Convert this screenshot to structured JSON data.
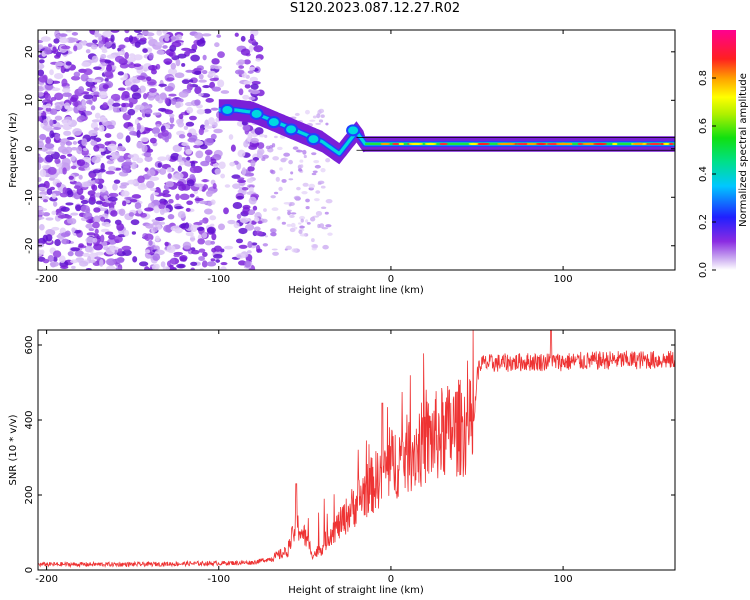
{
  "title": "S120.2023.087.12.27.R02",
  "chart_data": [
    {
      "type": "heatmap",
      "xlabel": "Height of straight line (km)",
      "ylabel": "Frequency (Hz)",
      "xlim": [
        -205,
        165
      ],
      "ylim": [
        -25,
        24.5
      ],
      "xticks": [
        -200,
        -100,
        0,
        100
      ],
      "yticks": [
        -20,
        -10,
        0,
        10,
        20
      ],
      "colorbar": {
        "label": "Normalized spectral amplitude",
        "range": [
          0,
          1
        ],
        "ticks": [
          0.0,
          0.2,
          0.4,
          0.6,
          0.8
        ]
      },
      "features": {
        "noise_region_x": [
          -205,
          -75
        ],
        "trace_points": [
          [
            -100,
            8
          ],
          [
            -90,
            8
          ],
          [
            -80,
            7.5
          ],
          [
            -70,
            6
          ],
          [
            -60,
            4.5
          ],
          [
            -50,
            3
          ],
          [
            -40,
            1.5
          ],
          [
            -30,
            -1
          ],
          [
            -20,
            3.5
          ],
          [
            -15,
            1
          ],
          [
            0,
            1
          ],
          [
            50,
            1
          ],
          [
            100,
            1
          ],
          [
            165,
            1
          ]
        ],
        "stable_band_freq": 1
      }
    },
    {
      "type": "line",
      "xlabel": "Height of straight line (km)",
      "ylabel": "SNR (10 * v/v)",
      "xlim": [
        -205,
        165
      ],
      "ylim": [
        0,
        640
      ],
      "xticks": [
        -200,
        -100,
        0,
        100
      ],
      "yticks": [
        0,
        200,
        400,
        600
      ],
      "color": "#ee3333",
      "series": [
        {
          "x": [
            -205,
            -150,
            -100,
            -80,
            -70,
            -60,
            -55,
            -50,
            -45,
            -40,
            -35,
            -30,
            -25,
            -20,
            -15,
            -10,
            -5,
            0,
            10,
            20,
            30,
            40,
            48,
            50,
            52,
            80,
            100,
            130,
            165
          ],
          "values": [
            15,
            15,
            18,
            20,
            30,
            50,
            120,
            90,
            40,
            60,
            100,
            120,
            150,
            180,
            210,
            230,
            260,
            280,
            310,
            340,
            365,
            380,
            380,
            520,
            550,
            555,
            555,
            560,
            560
          ]
        }
      ]
    }
  ]
}
